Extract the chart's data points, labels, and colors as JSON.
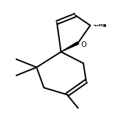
{
  "background": "#ffffff",
  "line_color": "#000000",
  "line_width": 1.5,
  "bond_width": 1.5,
  "fig_width": 1.83,
  "fig_height": 1.74,
  "dpi": 100
}
